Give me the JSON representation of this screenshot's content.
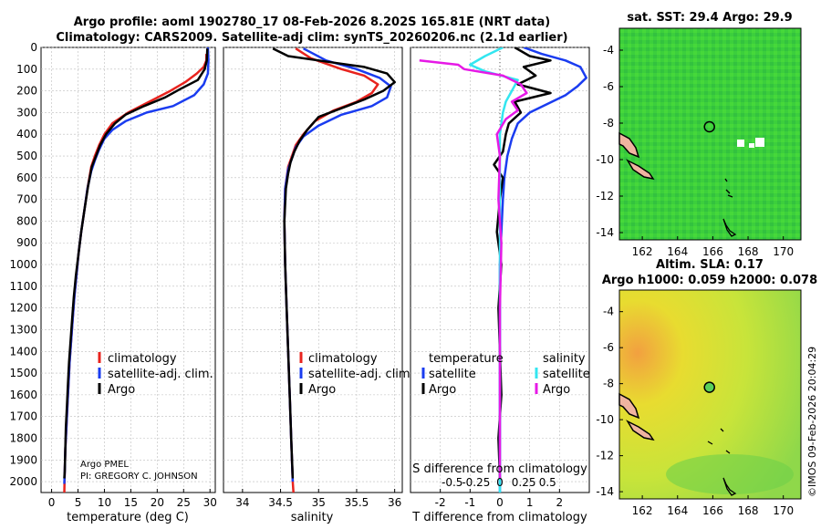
{
  "figure": {
    "title_line1": "Argo profile: aoml 1902780_17 08-Feb-2026 8.202S 165.81E (NRT data)",
    "title_line2": "Climatology: CARS2009. Satellite-adj clim: synTS_20260206.nc (2.1d earlier)",
    "credit_line1": "Argo PMEL",
    "credit_line2": "PI: GREGORY C. JOHNSON",
    "timestamp": "©IMOS 09-Feb-2026 20:04:29"
  },
  "colors": {
    "climatology": "#e8231e",
    "satellite": "#1a3cf0",
    "argo": "#000000",
    "argo_salinity_diff": "#e619e6",
    "satellite_salinity_diff": "#33e6f0",
    "map_green": "#3cd23c",
    "land": "#f0b4a0"
  },
  "chart_data": [
    {
      "type": "line",
      "panel": "temperature",
      "xlabel": "temperature (deg C)",
      "ylabel": "",
      "xlim": [
        -2,
        31
      ],
      "ylim": [
        2050,
        0
      ],
      "xticks": [
        0,
        5,
        10,
        15,
        20,
        25,
        30
      ],
      "yticks": [
        0,
        100,
        200,
        300,
        400,
        500,
        600,
        700,
        800,
        900,
        1000,
        1100,
        1200,
        1300,
        1400,
        1500,
        1600,
        1700,
        1800,
        1900,
        2000
      ],
      "legend": [
        "climatology",
        "satellite-adj. clim.",
        "Argo"
      ],
      "series": [
        {
          "name": "climatology",
          "color_key": "climatology",
          "points": [
            [
              29.3,
              30
            ],
            [
              29.3,
              60
            ],
            [
              28.8,
              90
            ],
            [
              27.5,
              120
            ],
            [
              25.3,
              160
            ],
            [
              22.5,
              200
            ],
            [
              18.5,
              250
            ],
            [
              14.5,
              300
            ],
            [
              11.5,
              350
            ],
            [
              10,
              400
            ],
            [
              9,
              450
            ],
            [
              8.2,
              500
            ],
            [
              7.5,
              550
            ],
            [
              6.8,
              650
            ],
            [
              6.2,
              750
            ],
            [
              5.6,
              850
            ],
            [
              5.1,
              950
            ],
            [
              4.7,
              1050
            ],
            [
              4.3,
              1150
            ],
            [
              4,
              1250
            ],
            [
              3.7,
              1350
            ],
            [
              3.4,
              1450
            ],
            [
              3.2,
              1550
            ],
            [
              3,
              1650
            ],
            [
              2.8,
              1750
            ],
            [
              2.6,
              1850
            ],
            [
              2.5,
              1950
            ],
            [
              2.4,
              2050
            ]
          ]
        },
        {
          "name": "satellite-adj. clim.",
          "color_key": "satellite",
          "points": [
            [
              29.6,
              0
            ],
            [
              29.7,
              60
            ],
            [
              29.6,
              120
            ],
            [
              28.8,
              170
            ],
            [
              27,
              220
            ],
            [
              23,
              270
            ],
            [
              18,
              300
            ],
            [
              14,
              340
            ],
            [
              11.5,
              380
            ],
            [
              10,
              420
            ],
            [
              9,
              470
            ],
            [
              8.2,
              520
            ],
            [
              7.5,
              570
            ],
            [
              6.8,
              650
            ],
            [
              6.2,
              750
            ],
            [
              5.6,
              850
            ],
            [
              5.1,
              950
            ],
            [
              4.7,
              1050
            ],
            [
              4.3,
              1150
            ],
            [
              4,
              1250
            ],
            [
              3.7,
              1350
            ],
            [
              3.4,
              1450
            ],
            [
              3.2,
              1550
            ],
            [
              3,
              1650
            ],
            [
              2.8,
              1750
            ],
            [
              2.6,
              1850
            ],
            [
              2.5,
              1950
            ],
            [
              2.4,
              2010
            ]
          ]
        },
        {
          "name": "Argo",
          "color_key": "argo",
          "points": [
            [
              29.5,
              5
            ],
            [
              29.4,
              60
            ],
            [
              29,
              100
            ],
            [
              27.7,
              150
            ],
            [
              24.5,
              190
            ],
            [
              21.5,
              230
            ],
            [
              17.5,
              270
            ],
            [
              14,
              310
            ],
            [
              12,
              350
            ],
            [
              10.3,
              400
            ],
            [
              9.2,
              450
            ],
            [
              8.4,
              500
            ],
            [
              7.6,
              550
            ],
            [
              6.9,
              640
            ],
            [
              6.2,
              750
            ],
            [
              5.6,
              850
            ],
            [
              5.1,
              950
            ],
            [
              4.6,
              1050
            ],
            [
              4.2,
              1150
            ],
            [
              3.9,
              1250
            ],
            [
              3.6,
              1350
            ],
            [
              3.3,
              1450
            ],
            [
              3.1,
              1550
            ],
            [
              2.9,
              1650
            ],
            [
              2.7,
              1750
            ],
            [
              2.6,
              1850
            ],
            [
              2.5,
              1950
            ],
            [
              2.4,
              1985
            ]
          ]
        }
      ]
    },
    {
      "type": "line",
      "panel": "salinity",
      "xlabel": "salinity",
      "xlim": [
        33.75,
        36.1
      ],
      "ylim": [
        2050,
        0
      ],
      "xticks": [
        34,
        34.5,
        35,
        35.5,
        36
      ],
      "legend": [
        "climatology",
        "satellite-adj. clim.",
        "Argo"
      ],
      "series": [
        {
          "name": "climatology",
          "color_key": "climatology",
          "points": [
            [
              34.7,
              5
            ],
            [
              34.9,
              50
            ],
            [
              35.3,
              100
            ],
            [
              35.6,
              130
            ],
            [
              35.78,
              170
            ],
            [
              35.7,
              210
            ],
            [
              35.5,
              250
            ],
            [
              35.2,
              290
            ],
            [
              34.95,
              340
            ],
            [
              34.8,
              400
            ],
            [
              34.7,
              450
            ],
            [
              34.65,
              500
            ],
            [
              34.6,
              550
            ],
            [
              34.56,
              650
            ],
            [
              34.55,
              800
            ],
            [
              34.56,
              1000
            ],
            [
              34.58,
              1200
            ],
            [
              34.6,
              1400
            ],
            [
              34.62,
              1600
            ],
            [
              34.64,
              1800
            ],
            [
              34.66,
              2000
            ],
            [
              34.67,
              2050
            ]
          ]
        },
        {
          "name": "satellite-adj. clim.",
          "color_key": "satellite",
          "points": [
            [
              34.8,
              5
            ],
            [
              35.1,
              60
            ],
            [
              35.5,
              100
            ],
            [
              35.8,
              140
            ],
            [
              35.95,
              180
            ],
            [
              35.9,
              230
            ],
            [
              35.7,
              270
            ],
            [
              35.3,
              310
            ],
            [
              35,
              360
            ],
            [
              34.8,
              410
            ],
            [
              34.7,
              460
            ],
            [
              34.65,
              510
            ],
            [
              34.6,
              560
            ],
            [
              34.56,
              650
            ],
            [
              34.55,
              800
            ],
            [
              34.56,
              1000
            ],
            [
              34.58,
              1200
            ],
            [
              34.6,
              1400
            ],
            [
              34.62,
              1600
            ],
            [
              34.64,
              1800
            ],
            [
              34.66,
              2000
            ]
          ]
        },
        {
          "name": "Argo",
          "color_key": "argo",
          "points": [
            [
              34.4,
              5
            ],
            [
              34.6,
              40
            ],
            [
              35.2,
              70
            ],
            [
              35.6,
              90
            ],
            [
              35.9,
              120
            ],
            [
              36,
              160
            ],
            [
              35.85,
              200
            ],
            [
              35.6,
              240
            ],
            [
              35.3,
              280
            ],
            [
              35,
              320
            ],
            [
              34.85,
              380
            ],
            [
              34.75,
              430
            ],
            [
              34.68,
              480
            ],
            [
              34.63,
              530
            ],
            [
              34.6,
              580
            ],
            [
              34.57,
              650
            ],
            [
              34.55,
              800
            ],
            [
              34.56,
              1000
            ],
            [
              34.58,
              1200
            ],
            [
              34.6,
              1400
            ],
            [
              34.62,
              1600
            ],
            [
              34.64,
              1800
            ],
            [
              34.66,
              1985
            ]
          ]
        }
      ]
    },
    {
      "type": "line",
      "panel": "difference",
      "xlabel": "T difference from climatology",
      "top_xlabel": "S difference from climatology",
      "xlim": [
        -3,
        3
      ],
      "ylim": [
        2050,
        0
      ],
      "xticks": [
        -2,
        -1,
        0,
        1,
        2
      ],
      "top_xticks": [
        "-0.5",
        "-0.25",
        "0",
        "0.25",
        "0.5"
      ],
      "legend_left_title": "temperature",
      "legend_left": [
        "satellite",
        "Argo"
      ],
      "legend_right_title": "salinity",
      "legend_right": [
        "satellite",
        "Argo"
      ],
      "series": [
        {
          "name": "temperature satellite",
          "color_key": "satellite",
          "points": [
            [
              0.8,
              0
            ],
            [
              1.4,
              30
            ],
            [
              2.2,
              60
            ],
            [
              2.7,
              90
            ],
            [
              2.9,
              140
            ],
            [
              2.6,
              180
            ],
            [
              2.2,
              220
            ],
            [
              1.6,
              260
            ],
            [
              1,
              300
            ],
            [
              0.6,
              350
            ],
            [
              0.4,
              420
            ],
            [
              0.25,
              500
            ],
            [
              0.15,
              600
            ],
            [
              0.1,
              700
            ],
            [
              0.05,
              850
            ],
            [
              0,
              1000
            ],
            [
              0,
              1500
            ],
            [
              0,
              2050
            ]
          ]
        },
        {
          "name": "temperature Argo",
          "color_key": "argo",
          "points": [
            [
              0.5,
              0
            ],
            [
              1,
              40
            ],
            [
              1.7,
              60
            ],
            [
              0.8,
              90
            ],
            [
              1.2,
              130
            ],
            [
              0.6,
              170
            ],
            [
              1.7,
              210
            ],
            [
              0.5,
              250
            ],
            [
              0.7,
              300
            ],
            [
              0.3,
              350
            ],
            [
              0.2,
              400
            ],
            [
              0.1,
              480
            ],
            [
              -0.2,
              540
            ],
            [
              0.1,
              600
            ],
            [
              0,
              700
            ],
            [
              -0.1,
              850
            ],
            [
              0.05,
              1000
            ],
            [
              -0.05,
              1200
            ],
            [
              0,
              1400
            ],
            [
              0.05,
              1600
            ],
            [
              -0.05,
              1800
            ],
            [
              0,
              1985
            ]
          ]
        },
        {
          "name": "salinity satellite",
          "color_key": "satellite_salinity_diff",
          "points": [
            [
              0.1,
              0
            ],
            [
              -0.5,
              40
            ],
            [
              -1,
              80
            ],
            [
              -0.5,
              110
            ],
            [
              0.6,
              150
            ],
            [
              0.4,
              200
            ],
            [
              0.2,
              250
            ],
            [
              0.1,
              300
            ],
            [
              0,
              400
            ],
            [
              0,
              600
            ],
            [
              0,
              2050
            ]
          ]
        },
        {
          "name": "salinity Argo",
          "color_key": "argo_salinity_diff",
          "points": [
            [
              -2.7,
              60
            ],
            [
              -1.4,
              80
            ],
            [
              -1.2,
              100
            ],
            [
              0.1,
              130
            ],
            [
              0.7,
              170
            ],
            [
              0.9,
              210
            ],
            [
              0.4,
              250
            ],
            [
              0.6,
              290
            ],
            [
              0.2,
              330
            ],
            [
              -0.1,
              400
            ],
            [
              0,
              500
            ],
            [
              -0.05,
              700
            ],
            [
              0.05,
              900
            ],
            [
              0,
              1200
            ],
            [
              0,
              1600
            ],
            [
              0,
              1985
            ]
          ]
        }
      ]
    }
  ],
  "maps": [
    {
      "panel": "sst",
      "title": "sat. SST: 29.4 Argo: 29.9",
      "lon_ticks": [
        "162",
        "164",
        "166",
        "168",
        "170"
      ],
      "lat_ticks": [
        "-4",
        "-6",
        "-8",
        "-10",
        "-12",
        "-14"
      ],
      "lon_range": [
        160.7,
        171
      ],
      "lat_range": [
        -14.4,
        -2.8
      ]
    },
    {
      "panel": "sla",
      "title_line1": "Altim. SLA: 0.17",
      "title_line2": "Argo h1000: 0.059 h2000: 0.078",
      "lon_ticks": [
        "162",
        "164",
        "166",
        "168",
        "170"
      ],
      "lat_ticks": [
        "-4",
        "-6",
        "-8",
        "-10",
        "-12",
        "-14"
      ],
      "lon_range": [
        160.7,
        171
      ],
      "lat_range": [
        -14.4,
        -2.8
      ]
    }
  ]
}
